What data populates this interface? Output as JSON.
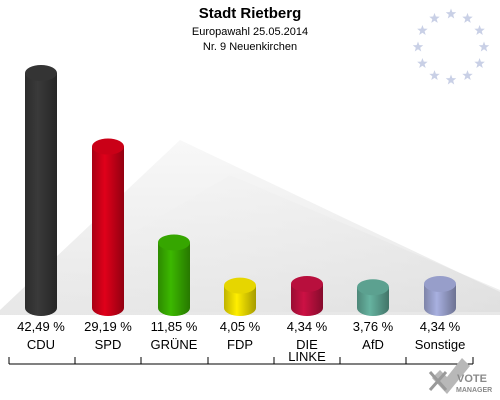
{
  "header": {
    "title": "Stadt Rietberg",
    "subtitle": "Europawahl 25.05.2014",
    "district": "Nr. 9 Neuenkirchen"
  },
  "logo": {
    "text_top": "VOTE",
    "text_bottom": "MANAGER"
  },
  "chart_data": {
    "type": "bar",
    "title": "Stadt Rietberg",
    "subtitle": "Europawahl 25.05.2014 — Nr. 9 Neuenkirchen",
    "categories": [
      "CDU",
      "SPD",
      "GRÜNE",
      "FDP",
      "DIE LINKE",
      "AfD",
      "Sonstige"
    ],
    "category_lines": [
      [
        "CDU"
      ],
      [
        "SPD"
      ],
      [
        "GRÜNE"
      ],
      [
        "FDP"
      ],
      [
        "DIE",
        "LINKE"
      ],
      [
        "AfD"
      ],
      [
        "Sonstige"
      ]
    ],
    "values": [
      42.49,
      29.19,
      11.85,
      4.05,
      4.34,
      3.76,
      4.34
    ],
    "value_labels": [
      "42,49 %",
      "29,19 %",
      "11,85 %",
      "4,05 %",
      "4,34 %",
      "3,76 %",
      "4,34 %"
    ],
    "unit": "%",
    "colors": [
      "#3a3a3a",
      "#e0001a",
      "#3cb800",
      "#ffee00",
      "#cc1144",
      "#66b3a0",
      "#a8b0e0"
    ],
    "xlabel": "",
    "ylabel": "",
    "ylim": [
      0,
      45
    ],
    "grid": false,
    "legend": "none"
  }
}
